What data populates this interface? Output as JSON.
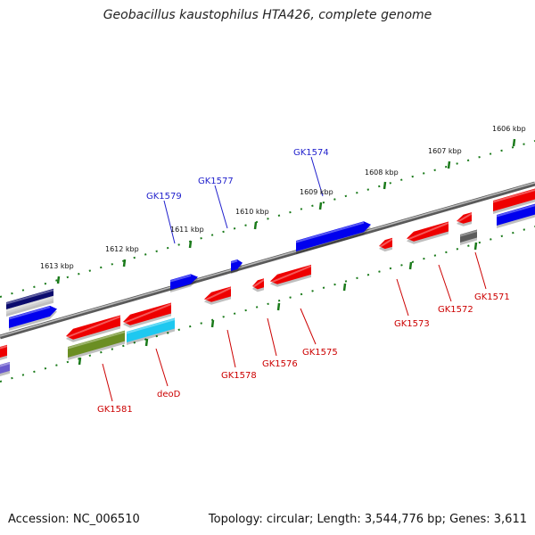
{
  "title": "Geobacillus kaustophilus HTA426, complete genome",
  "footer": {
    "accession": "Accession: NC_006510",
    "summary": "Topology: circular; Length: 3,544,776 bp; Genes: 3,611"
  },
  "ticks": [
    "1606 kbp",
    "1607 kbp",
    "1608 kbp",
    "1609 kbp",
    "1610 kbp",
    "1611 kbp",
    "1612 kbp",
    "1613 kbp"
  ],
  "genes_top": [
    {
      "name": "GK1574",
      "color": "#1f1fcc"
    },
    {
      "name": "GK1577",
      "color": "#1f1fcc"
    },
    {
      "name": "GK1579",
      "color": "#1f1fcc"
    }
  ],
  "genes_bottom": [
    {
      "name": "GK1571",
      "color": "#cc0000"
    },
    {
      "name": "GK1572",
      "color": "#cc0000"
    },
    {
      "name": "GK1573",
      "color": "#cc0000"
    },
    {
      "name": "GK1575",
      "color": "#cc0000"
    },
    {
      "name": "GK1576",
      "color": "#cc0000"
    },
    {
      "name": "GK1578",
      "color": "#cc0000"
    },
    {
      "name": "deoD",
      "color": "#cc0000"
    },
    {
      "name": "GK1581",
      "color": "#cc0000"
    }
  ],
  "colors": {
    "forward": "#0000ee",
    "reverse": "#ee0000",
    "navy": "#0b0b6e",
    "gray": "#777777",
    "olive": "#6b8e23",
    "cyan": "#1ec8f0",
    "slate": "#6a5acd",
    "tick": "#1a7a1a",
    "backbone": "#888888"
  }
}
